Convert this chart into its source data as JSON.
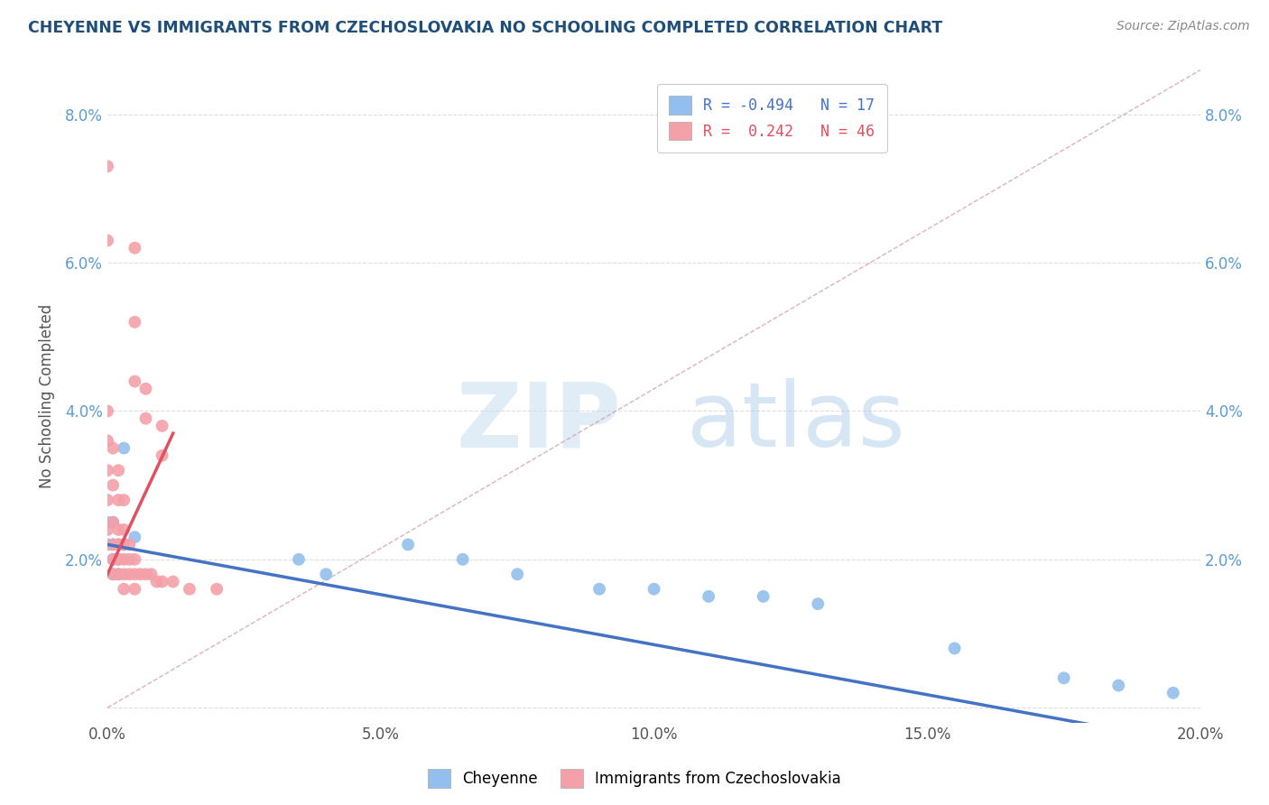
{
  "title": "CHEYENNE VS IMMIGRANTS FROM CZECHOSLOVAKIA NO SCHOOLING COMPLETED CORRELATION CHART",
  "source": "Source: ZipAtlas.com",
  "ylabel": "No Schooling Completed",
  "xlim": [
    0.0,
    0.2
  ],
  "ylim": [
    -0.002,
    0.086
  ],
  "xtick_labels": [
    "0.0%",
    "5.0%",
    "10.0%",
    "15.0%",
    "20.0%"
  ],
  "xtick_vals": [
    0.0,
    0.05,
    0.1,
    0.15,
    0.2
  ],
  "ytick_labels": [
    "",
    "2.0%",
    "4.0%",
    "6.0%",
    "8.0%"
  ],
  "ytick_vals": [
    0.0,
    0.02,
    0.04,
    0.06,
    0.08
  ],
  "color_blue": "#92BFED",
  "color_pink": "#F4A0A8",
  "color_trendline_blue": "#4472C4",
  "color_trendline_pink": "#E05060",
  "color_diagonal": "#D0A0A8",
  "cheyenne_points": [
    [
      0.0,
      0.025
    ],
    [
      0.0,
      0.022
    ],
    [
      0.001,
      0.025
    ],
    [
      0.001,
      0.022
    ],
    [
      0.001,
      0.02
    ],
    [
      0.001,
      0.018
    ],
    [
      0.002,
      0.022
    ],
    [
      0.002,
      0.02
    ],
    [
      0.002,
      0.018
    ],
    [
      0.003,
      0.035
    ],
    [
      0.003,
      0.022
    ],
    [
      0.005,
      0.023
    ],
    [
      0.035,
      0.02
    ],
    [
      0.04,
      0.018
    ],
    [
      0.055,
      0.022
    ],
    [
      0.065,
      0.02
    ],
    [
      0.075,
      0.018
    ],
    [
      0.09,
      0.016
    ],
    [
      0.1,
      0.016
    ],
    [
      0.11,
      0.015
    ],
    [
      0.12,
      0.015
    ],
    [
      0.13,
      0.014
    ],
    [
      0.155,
      0.008
    ],
    [
      0.175,
      0.004
    ],
    [
      0.185,
      0.003
    ],
    [
      0.195,
      0.002
    ]
  ],
  "czech_points": [
    [
      0.0,
      0.073
    ],
    [
      0.0,
      0.063
    ],
    [
      0.005,
      0.052
    ],
    [
      0.005,
      0.044
    ],
    [
      0.007,
      0.043
    ],
    [
      0.007,
      0.039
    ],
    [
      0.01,
      0.038
    ],
    [
      0.01,
      0.034
    ],
    [
      0.005,
      0.062
    ],
    [
      0.0,
      0.04
    ],
    [
      0.0,
      0.036
    ],
    [
      0.0,
      0.032
    ],
    [
      0.0,
      0.028
    ],
    [
      0.0,
      0.024
    ],
    [
      0.001,
      0.035
    ],
    [
      0.001,
      0.03
    ],
    [
      0.001,
      0.025
    ],
    [
      0.001,
      0.022
    ],
    [
      0.001,
      0.02
    ],
    [
      0.001,
      0.018
    ],
    [
      0.002,
      0.032
    ],
    [
      0.002,
      0.028
    ],
    [
      0.002,
      0.024
    ],
    [
      0.002,
      0.022
    ],
    [
      0.002,
      0.02
    ],
    [
      0.002,
      0.018
    ],
    [
      0.003,
      0.028
    ],
    [
      0.003,
      0.024
    ],
    [
      0.003,
      0.022
    ],
    [
      0.003,
      0.02
    ],
    [
      0.003,
      0.018
    ],
    [
      0.003,
      0.016
    ],
    [
      0.004,
      0.022
    ],
    [
      0.004,
      0.02
    ],
    [
      0.004,
      0.018
    ],
    [
      0.005,
      0.02
    ],
    [
      0.005,
      0.018
    ],
    [
      0.005,
      0.016
    ],
    [
      0.006,
      0.018
    ],
    [
      0.007,
      0.018
    ],
    [
      0.008,
      0.018
    ],
    [
      0.009,
      0.017
    ],
    [
      0.01,
      0.017
    ],
    [
      0.012,
      0.017
    ],
    [
      0.015,
      0.016
    ],
    [
      0.02,
      0.016
    ]
  ],
  "blue_trendline": [
    [
      0.0,
      0.022
    ],
    [
      0.2,
      -0.005
    ]
  ],
  "pink_trendline": [
    [
      0.0,
      0.018
    ],
    [
      0.012,
      0.037
    ]
  ]
}
